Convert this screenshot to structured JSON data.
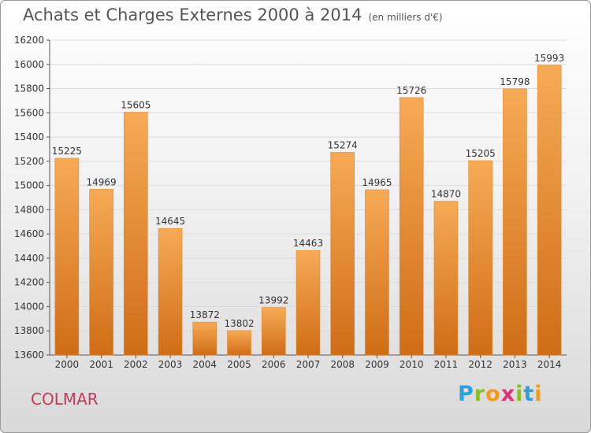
{
  "title": "Achats et Charges Externes 2000 à 2014",
  "unit": "(en milliers d'€)",
  "city": "COLMAR",
  "logo": {
    "letters": [
      "P",
      "r",
      "o",
      "x",
      "i",
      "t",
      "i"
    ],
    "colors": [
      "#2e9fd8",
      "#8cbd2a",
      "#f19a1e",
      "#e0307a",
      "#8cbd2a",
      "#2e9fd8",
      "#f19a1e"
    ]
  },
  "chart_data": {
    "type": "bar",
    "title": "Achats et Charges Externes 2000 à 2014",
    "subtitle": "(en milliers d'€)",
    "categories": [
      "2000",
      "2001",
      "2002",
      "2003",
      "2004",
      "2005",
      "2006",
      "2007",
      "2008",
      "2009",
      "2010",
      "2011",
      "2012",
      "2013",
      "2014"
    ],
    "values": [
      15225,
      14969,
      15605,
      14645,
      13872,
      13802,
      13992,
      14463,
      15274,
      14965,
      15726,
      14870,
      15205,
      15798,
      15993
    ],
    "ylim": [
      13600,
      16200
    ],
    "yticks": [
      13600,
      13800,
      14000,
      14200,
      14400,
      14600,
      14800,
      15000,
      15200,
      15400,
      15600,
      15800,
      16000,
      16200
    ],
    "grid": true,
    "bar_color": "#f0902c"
  }
}
